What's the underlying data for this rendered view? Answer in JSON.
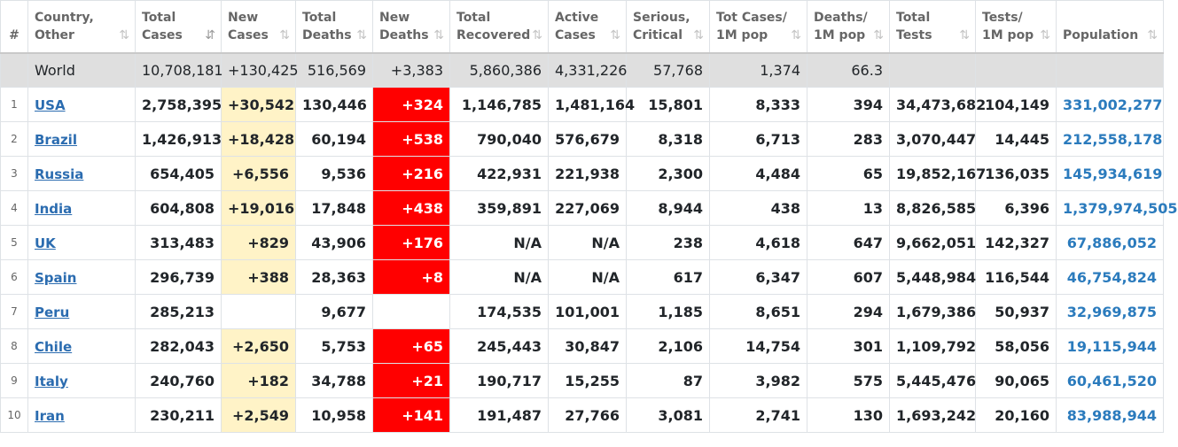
{
  "columns": [
    {
      "line1": "#",
      "line2": "",
      "sort": ""
    },
    {
      "line1": "Country,",
      "line2": "Other",
      "sort": "⇅"
    },
    {
      "line1": "Total",
      "line2": "Cases",
      "sort": "⇵"
    },
    {
      "line1": "New",
      "line2": "Cases",
      "sort": "⇅"
    },
    {
      "line1": "Total",
      "line2": "Deaths",
      "sort": "⇅"
    },
    {
      "line1": "New",
      "line2": "Deaths",
      "sort": "⇅"
    },
    {
      "line1": "Total",
      "line2": "Recovered",
      "sort": "⇅"
    },
    {
      "line1": "Active",
      "line2": "Cases",
      "sort": "⇅"
    },
    {
      "line1": "Serious,",
      "line2": "Critical",
      "sort": "⇅"
    },
    {
      "line1": "Tot Cases/",
      "line2": "1M pop",
      "sort": "⇅"
    },
    {
      "line1": "Deaths/",
      "line2": "1M pop",
      "sort": "⇅"
    },
    {
      "line1": "Total",
      "line2": "Tests",
      "sort": "⇅"
    },
    {
      "line1": "Tests/",
      "line2": "1M pop",
      "sort": "⇅"
    },
    {
      "line1": "Population",
      "line2": "",
      "sort": "⇅"
    }
  ],
  "world": {
    "name": "World",
    "total_cases": "10,708,181",
    "new_cases": "+130,425",
    "total_deaths": "516,569",
    "new_deaths": "+3,383",
    "total_recovered": "5,860,386",
    "active_cases": "4,331,226",
    "serious": "57,768",
    "cases_per_1m": "1,374",
    "deaths_per_1m": "66.3",
    "total_tests": "",
    "tests_per_1m": "",
    "population": ""
  },
  "rows": [
    {
      "idx": "1",
      "name": "USA",
      "total_cases": "2,758,395",
      "new_cases": "+30,542",
      "total_deaths": "130,446",
      "new_deaths": "+324",
      "total_recovered": "1,146,785",
      "active_cases": "1,481,164",
      "serious": "15,801",
      "cases_per_1m": "8,333",
      "deaths_per_1m": "394",
      "total_tests": "34,473,682",
      "tests_per_1m": "104,149",
      "population": "331,002,277"
    },
    {
      "idx": "2",
      "name": "Brazil",
      "total_cases": "1,426,913",
      "new_cases": "+18,428",
      "total_deaths": "60,194",
      "new_deaths": "+538",
      "total_recovered": "790,040",
      "active_cases": "576,679",
      "serious": "8,318",
      "cases_per_1m": "6,713",
      "deaths_per_1m": "283",
      "total_tests": "3,070,447",
      "tests_per_1m": "14,445",
      "population": "212,558,178"
    },
    {
      "idx": "3",
      "name": "Russia",
      "total_cases": "654,405",
      "new_cases": "+6,556",
      "total_deaths": "9,536",
      "new_deaths": "+216",
      "total_recovered": "422,931",
      "active_cases": "221,938",
      "serious": "2,300",
      "cases_per_1m": "4,484",
      "deaths_per_1m": "65",
      "total_tests": "19,852,167",
      "tests_per_1m": "136,035",
      "population": "145,934,619"
    },
    {
      "idx": "4",
      "name": "India",
      "total_cases": "604,808",
      "new_cases": "+19,016",
      "total_deaths": "17,848",
      "new_deaths": "+438",
      "total_recovered": "359,891",
      "active_cases": "227,069",
      "serious": "8,944",
      "cases_per_1m": "438",
      "deaths_per_1m": "13",
      "total_tests": "8,826,585",
      "tests_per_1m": "6,396",
      "population": "1,379,974,505"
    },
    {
      "idx": "5",
      "name": "UK",
      "total_cases": "313,483",
      "new_cases": "+829",
      "total_deaths": "43,906",
      "new_deaths": "+176",
      "total_recovered": "N/A",
      "active_cases": "N/A",
      "serious": "238",
      "cases_per_1m": "4,618",
      "deaths_per_1m": "647",
      "total_tests": "9,662,051",
      "tests_per_1m": "142,327",
      "population": "67,886,052"
    },
    {
      "idx": "6",
      "name": "Spain",
      "total_cases": "296,739",
      "new_cases": "+388",
      "total_deaths": "28,363",
      "new_deaths": "+8",
      "total_recovered": "N/A",
      "active_cases": "N/A",
      "serious": "617",
      "cases_per_1m": "6,347",
      "deaths_per_1m": "607",
      "total_tests": "5,448,984",
      "tests_per_1m": "116,544",
      "population": "46,754,824"
    },
    {
      "idx": "7",
      "name": "Peru",
      "total_cases": "285,213",
      "new_cases": "",
      "total_deaths": "9,677",
      "new_deaths": "",
      "total_recovered": "174,535",
      "active_cases": "101,001",
      "serious": "1,185",
      "cases_per_1m": "8,651",
      "deaths_per_1m": "294",
      "total_tests": "1,679,386",
      "tests_per_1m": "50,937",
      "population": "32,969,875"
    },
    {
      "idx": "8",
      "name": "Chile",
      "total_cases": "282,043",
      "new_cases": "+2,650",
      "total_deaths": "5,753",
      "new_deaths": "+65",
      "total_recovered": "245,443",
      "active_cases": "30,847",
      "serious": "2,106",
      "cases_per_1m": "14,754",
      "deaths_per_1m": "301",
      "total_tests": "1,109,792",
      "tests_per_1m": "58,056",
      "population": "19,115,944"
    },
    {
      "idx": "9",
      "name": "Italy",
      "total_cases": "240,760",
      "new_cases": "+182",
      "total_deaths": "34,788",
      "new_deaths": "+21",
      "total_recovered": "190,717",
      "active_cases": "15,255",
      "serious": "87",
      "cases_per_1m": "3,982",
      "deaths_per_1m": "575",
      "total_tests": "5,445,476",
      "tests_per_1m": "90,065",
      "population": "60,461,520"
    },
    {
      "idx": "10",
      "name": "Iran",
      "total_cases": "230,211",
      "new_cases": "+2,549",
      "total_deaths": "10,958",
      "new_deaths": "+141",
      "total_recovered": "191,487",
      "active_cases": "27,766",
      "serious": "3,081",
      "cases_per_1m": "2,741",
      "deaths_per_1m": "130",
      "total_tests": "1,693,242",
      "tests_per_1m": "20,160",
      "population": "83,988,944"
    }
  ]
}
